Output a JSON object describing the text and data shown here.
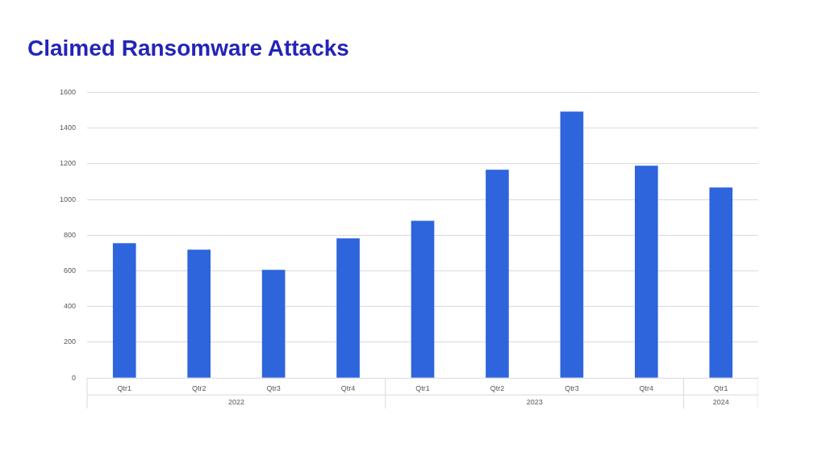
{
  "chart_data": {
    "type": "bar",
    "title": "Claimed Ransomware Attacks",
    "categories": [
      "Qtr1",
      "Qtr2",
      "Qtr3",
      "Qtr4",
      "Qtr1",
      "Qtr2",
      "Qtr3",
      "Qtr4",
      "Qtr1"
    ],
    "values": [
      755,
      719,
      606,
      782,
      881,
      1166,
      1492,
      1189,
      1067
    ],
    "color": "#2e64dc",
    "ylim": [
      0,
      1600
    ],
    "yticks": [
      0,
      200,
      400,
      600,
      800,
      1000,
      1200,
      1400,
      1600
    ],
    "grid": "y",
    "legend": false,
    "annotations": [
      "2022",
      "2023",
      "2024"
    ]
  }
}
